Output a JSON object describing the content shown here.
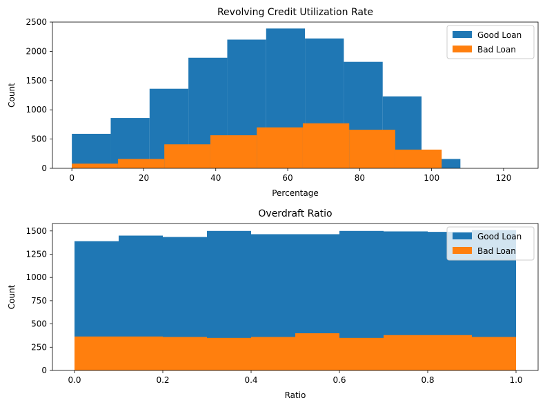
{
  "chart_data": [
    {
      "type": "bar",
      "title": "Revolving Credit Utilization Rate",
      "xlabel": "Percentage",
      "ylabel": "Count",
      "xlim": [
        -5.4,
        129.6
      ],
      "ylim": [
        0,
        2500
      ],
      "xticks": [
        "0",
        "20",
        "40",
        "60",
        "80",
        "100",
        "120"
      ],
      "xtick_values": [
        0,
        20,
        40,
        60,
        80,
        100,
        120
      ],
      "yticks": [
        "0",
        "500",
        "1000",
        "1500",
        "2000",
        "2500"
      ],
      "ytick_values": [
        0,
        500,
        1000,
        1500,
        2000,
        2500
      ],
      "legend_position": "top-right",
      "series": [
        {
          "name": "Good Loan",
          "color": "#1f77b4",
          "bins": [
            [
              0,
              10.8,
              590
            ],
            [
              10.8,
              21.6,
              860
            ],
            [
              21.6,
              32.4,
              1360
            ],
            [
              32.4,
              43.2,
              1890
            ],
            [
              43.2,
              54.0,
              2200
            ],
            [
              54.0,
              64.8,
              2390
            ],
            [
              64.8,
              75.6,
              2220
            ],
            [
              75.6,
              86.4,
              1820
            ],
            [
              86.4,
              97.2,
              1230
            ],
            [
              97.2,
              108.0,
              160
            ],
            [
              108.0,
              118.8,
              0
            ],
            [
              118.8,
              129.6,
              0
            ]
          ]
        },
        {
          "name": "Bad Loan",
          "color": "#ff7f0e",
          "bins": [
            [
              0,
              12.8,
              80
            ],
            [
              12.8,
              25.7,
              160
            ],
            [
              25.7,
              38.5,
              410
            ],
            [
              38.5,
              51.4,
              565
            ],
            [
              51.4,
              64.2,
              700
            ],
            [
              64.2,
              77.1,
              770
            ],
            [
              77.1,
              89.9,
              660
            ],
            [
              89.9,
              102.8,
              320
            ]
          ]
        }
      ]
    },
    {
      "type": "bar",
      "title": "Overdraft Ratio",
      "xlabel": "Ratio",
      "ylabel": "Count",
      "xlim": [
        -0.05,
        1.05
      ],
      "ylim": [
        0,
        1580
      ],
      "xticks": [
        "0.0",
        "0.2",
        "0.4",
        "0.6",
        "0.8",
        "1.0"
      ],
      "xtick_values": [
        0,
        0.2,
        0.4,
        0.6,
        0.8,
        1.0
      ],
      "yticks": [
        "0",
        "250",
        "500",
        "750",
        "1000",
        "1250",
        "1500"
      ],
      "ytick_values": [
        0,
        250,
        500,
        750,
        1000,
        1250,
        1500
      ],
      "legend_position": "top-right",
      "series": [
        {
          "name": "Good Loan",
          "color": "#1f77b4",
          "bins": [
            [
              0.0,
              0.1,
              1390
            ],
            [
              0.1,
              0.2,
              1450
            ],
            [
              0.2,
              0.3,
              1435
            ],
            [
              0.3,
              0.4,
              1500
            ],
            [
              0.4,
              0.5,
              1465
            ],
            [
              0.5,
              0.6,
              1465
            ],
            [
              0.6,
              0.7,
              1500
            ],
            [
              0.7,
              0.8,
              1495
            ],
            [
              0.8,
              0.9,
              1490
            ],
            [
              0.9,
              1.0,
              1510
            ]
          ]
        },
        {
          "name": "Bad Loan",
          "color": "#ff7f0e",
          "bins": [
            [
              0.0,
              0.1,
              365
            ],
            [
              0.1,
              0.2,
              365
            ],
            [
              0.2,
              0.3,
              360
            ],
            [
              0.3,
              0.4,
              350
            ],
            [
              0.4,
              0.5,
              360
            ],
            [
              0.5,
              0.6,
              400
            ],
            [
              0.6,
              0.7,
              350
            ],
            [
              0.7,
              0.8,
              380
            ],
            [
              0.8,
              0.9,
              380
            ],
            [
              0.9,
              1.0,
              360
            ]
          ]
        }
      ]
    }
  ]
}
